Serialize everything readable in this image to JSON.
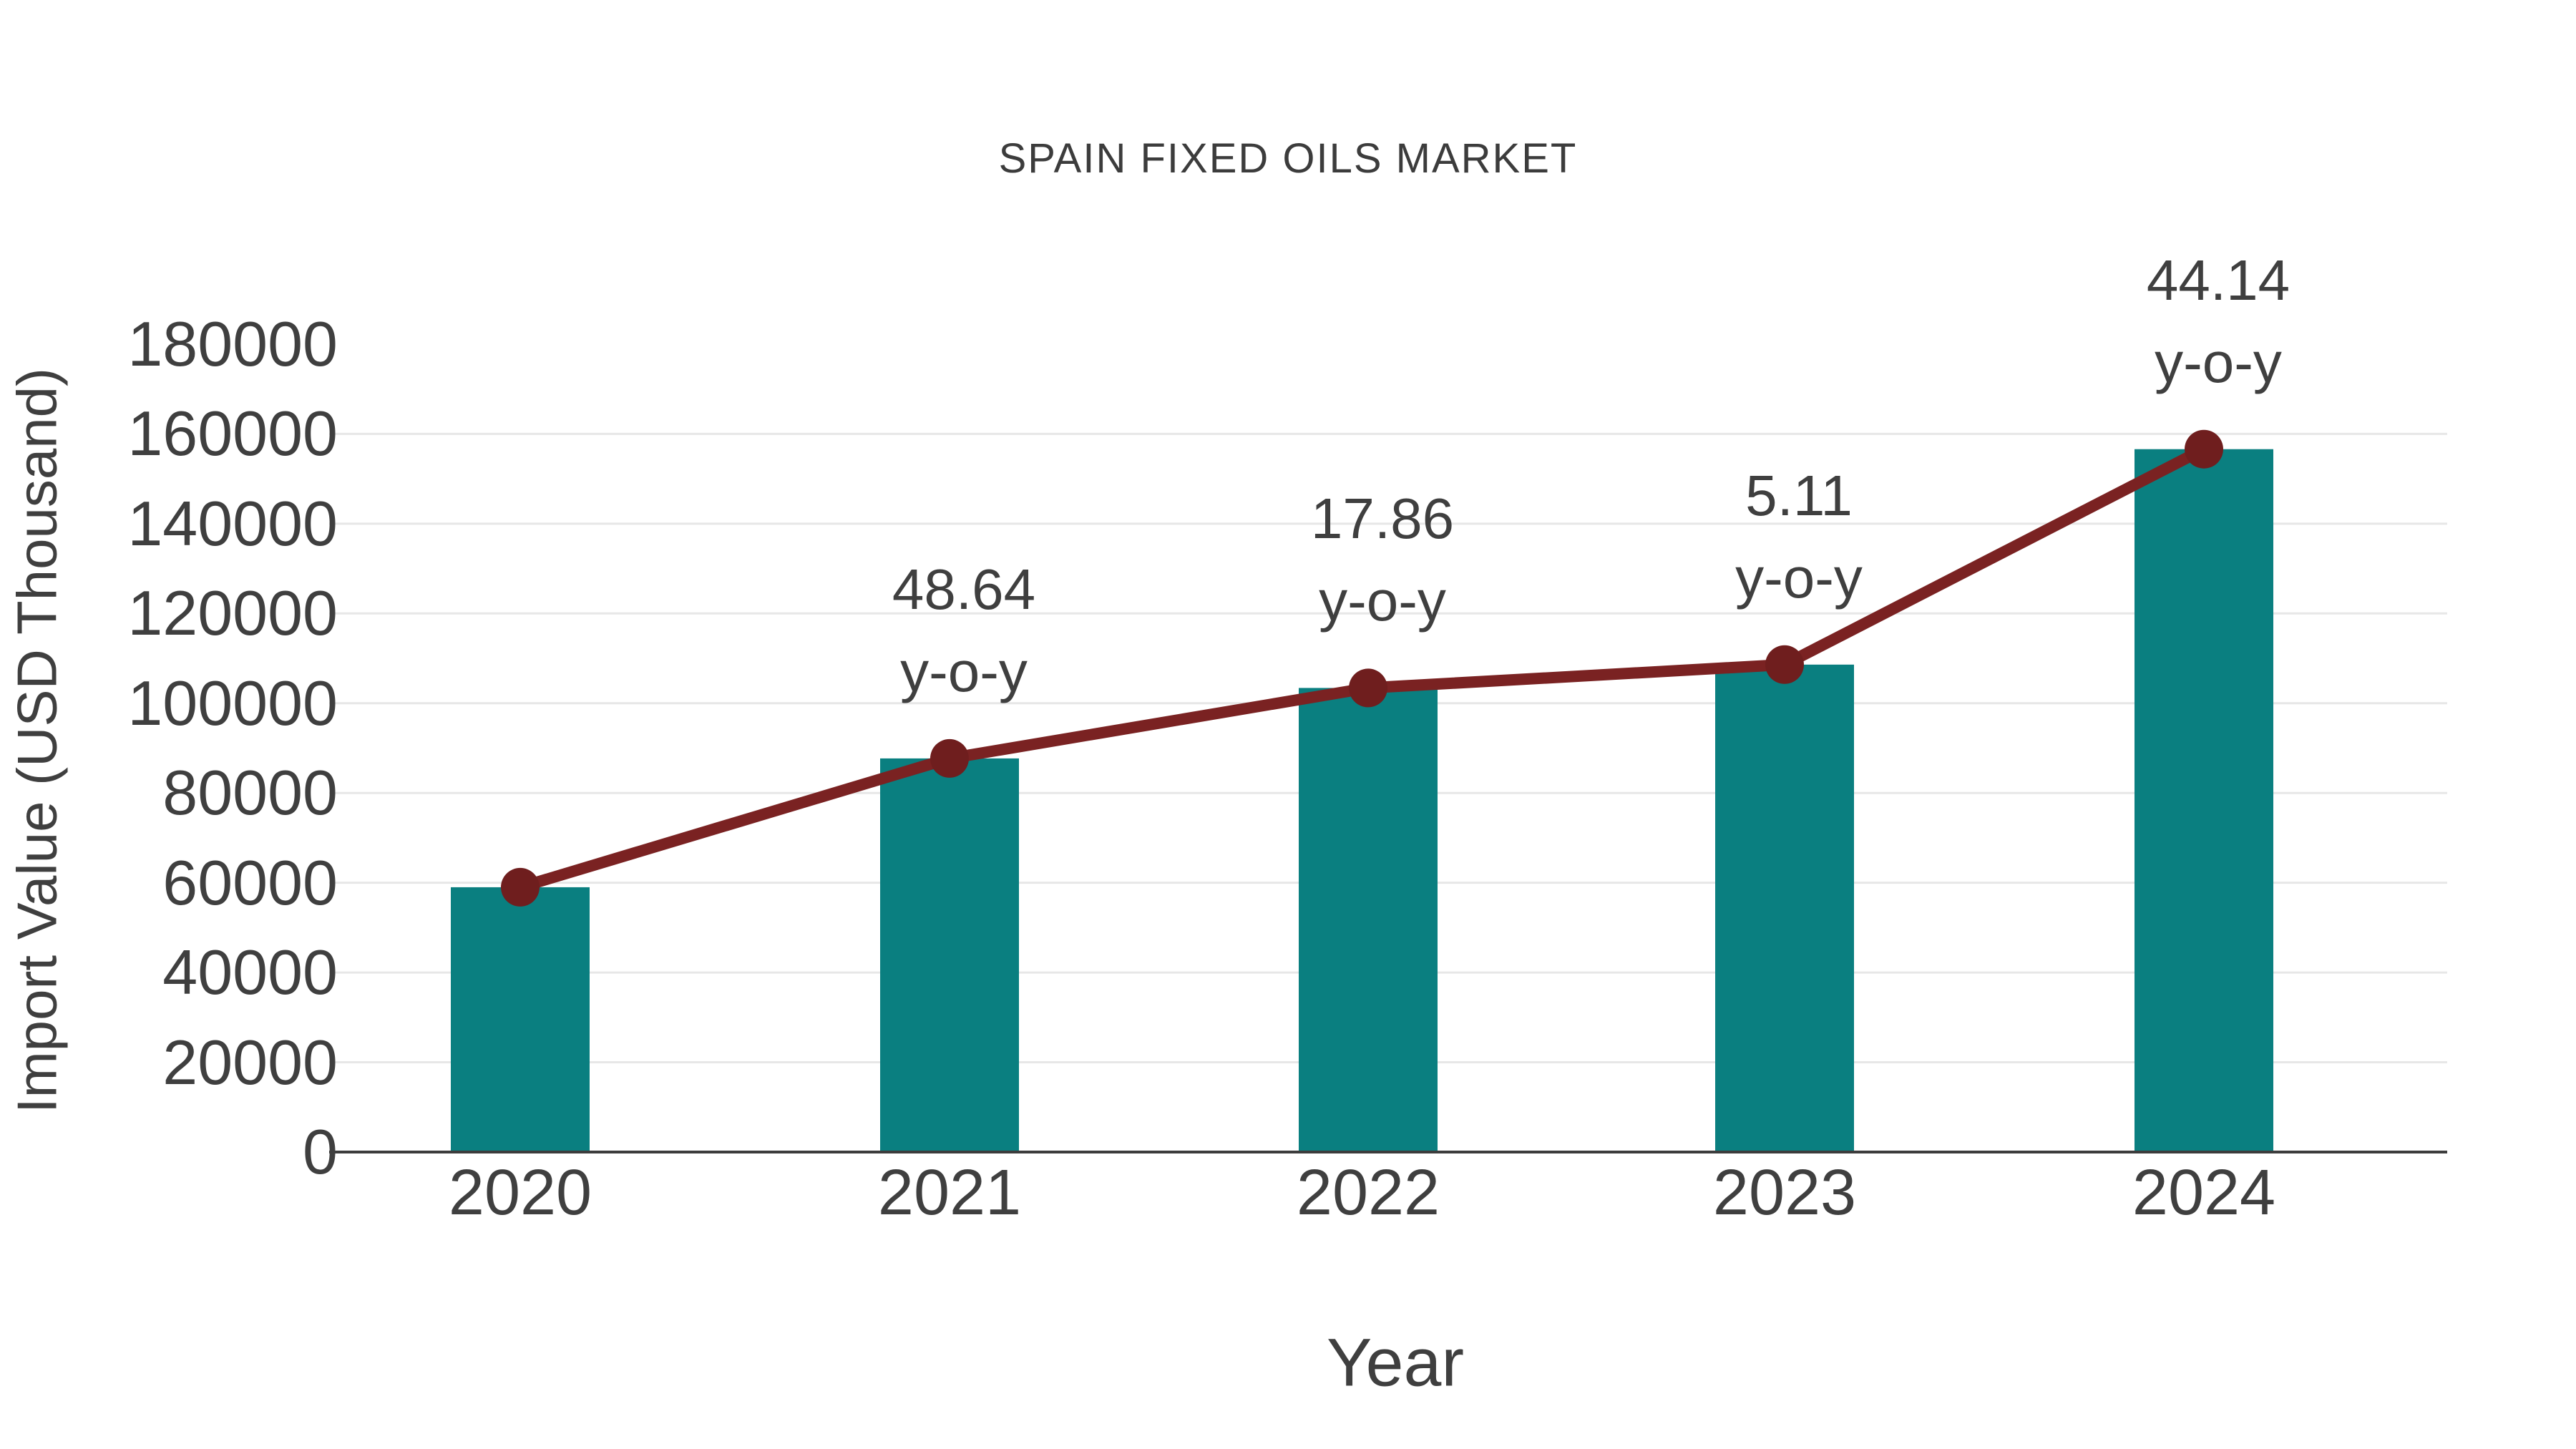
{
  "chart_data": {
    "type": "bar",
    "combo": "bar with overlaid line markers at bar tops",
    "title": "SPAIN FIXED OILS MARKET",
    "xlabel": "Year",
    "ylabel": "Import Value (USD Thousand)",
    "categories": [
      "2020",
      "2021",
      "2022",
      "2023",
      "2024"
    ],
    "series": [
      {
        "name": "Import Value (USD Thousand)",
        "type": "bar",
        "values": [
          59000,
          87700,
          103400,
          108600,
          156600
        ]
      },
      {
        "name": "y-o-y growth",
        "type": "line",
        "values": [
          59000,
          87700,
          103400,
          108600,
          156600
        ],
        "yoy_percent": [
          null,
          48.64,
          17.86,
          5.11,
          44.14
        ]
      }
    ],
    "annotations": [
      {
        "category": "2021",
        "line1": "48.64",
        "line2": "y-o-y"
      },
      {
        "category": "2022",
        "line1": "17.86",
        "line2": "y-o-y"
      },
      {
        "category": "2023",
        "line1": "5.11",
        "line2": "y-o-y"
      },
      {
        "category": "2024",
        "line1": "44.14",
        "line2": "y-o-y"
      }
    ],
    "ylim": [
      0,
      180000
    ],
    "ytick_step": 20000,
    "ytick_labels": [
      "0",
      "20000",
      "40000",
      "60000",
      "80000",
      "100000",
      "120000",
      "140000",
      "160000",
      "180000"
    ],
    "grid": "horizontal, light gray, no top gridline at 180000",
    "legend": "none",
    "colors": {
      "bar": "#0A7F80",
      "line": "#7A2222",
      "marker": "#6F1E1E",
      "text": "#3f3f3f",
      "gridline": "#e7e7e7",
      "axis_line": "#3d3d3d",
      "background": "#ffffff"
    }
  }
}
